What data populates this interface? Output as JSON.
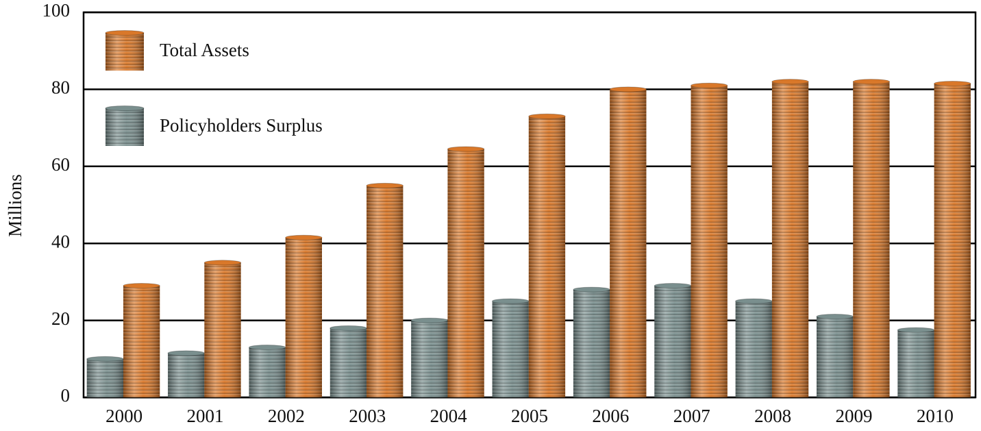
{
  "chart_data": {
    "type": "bar",
    "y_label": "Millions",
    "categories": [
      "2000",
      "2001",
      "2002",
      "2003",
      "2004",
      "2005",
      "2006",
      "2007",
      "2008",
      "2009",
      "2010"
    ],
    "series": [
      {
        "name": "Policyholders Surplus",
        "color": "#7a8f8e",
        "values": [
          10,
          11.5,
          13,
          18,
          20,
          25,
          28,
          29,
          25,
          21,
          17.5
        ]
      },
      {
        "name": "Total Assets",
        "color": "#d9782a",
        "values": [
          29,
          35,
          41.5,
          55,
          64.5,
          73,
          80,
          81,
          82,
          82,
          81.5
        ]
      }
    ],
    "ylim": [
      0,
      100
    ],
    "yticks": [
      0,
      20,
      40,
      60,
      80,
      100
    ],
    "grid": true,
    "legend": "top-left"
  }
}
